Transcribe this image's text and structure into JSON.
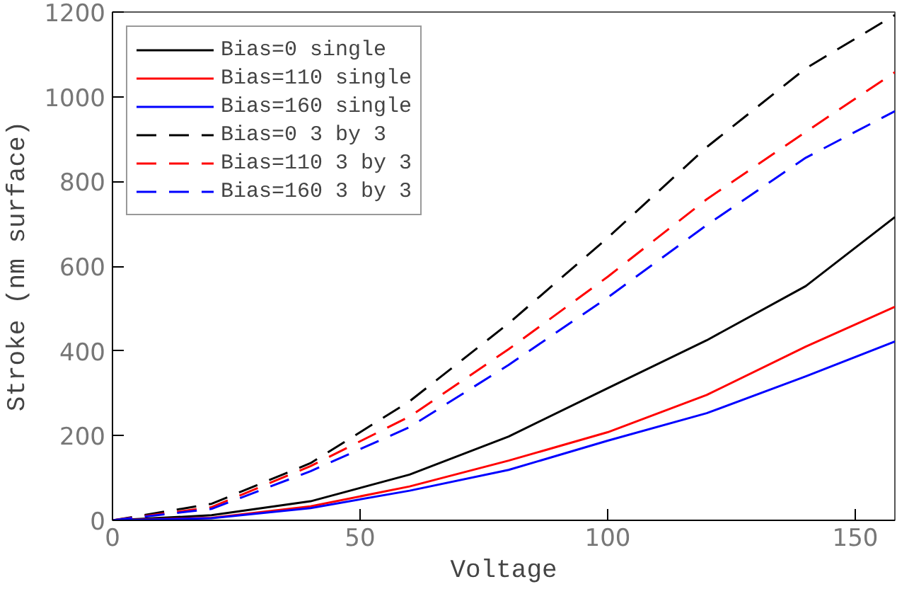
{
  "chart_data": {
    "type": "line",
    "xlabel": "Voltage",
    "ylabel": "Stroke (nm surface)",
    "xlim": [
      0,
      158
    ],
    "ylim": [
      0,
      1200
    ],
    "xticks": [
      0,
      50,
      100,
      150
    ],
    "yticks": [
      0,
      200,
      400,
      600,
      800,
      1000,
      1200
    ],
    "grid": false,
    "legend": "top left",
    "x": [
      0,
      20,
      40,
      60,
      80,
      100,
      120,
      140,
      158
    ],
    "series": [
      {
        "name": "Bias=0 single",
        "color": "#000000",
        "line_style": "solid",
        "values": [
          0,
          12,
          45,
          108,
          198,
          312,
          425,
          553,
          716
        ]
      },
      {
        "name": "Bias=110 single",
        "color": "#ff0000",
        "line_style": "solid",
        "values": [
          0,
          6,
          33,
          80,
          141,
          208,
          296,
          410,
          504
        ]
      },
      {
        "name": "Bias=160 single",
        "color": "#0000ff",
        "line_style": "solid",
        "values": [
          0,
          5,
          29,
          70,
          119,
          188,
          253,
          340,
          422
        ]
      },
      {
        "name": "Bias=0 3 by 3",
        "color": "#000000",
        "line_style": "dashed",
        "values": [
          0,
          39,
          135,
          281,
          465,
          667,
          881,
          1067,
          1193
        ]
      },
      {
        "name": "Bias=110 3 by 3",
        "color": "#ff0000",
        "line_style": "dashed",
        "values": [
          0,
          31,
          128,
          245,
          404,
          575,
          758,
          917,
          1058
        ]
      },
      {
        "name": "Bias=160 3 by 3",
        "color": "#0000ff",
        "line_style": "dashed",
        "values": [
          0,
          27,
          116,
          220,
          367,
          526,
          697,
          856,
          966
        ]
      }
    ]
  }
}
